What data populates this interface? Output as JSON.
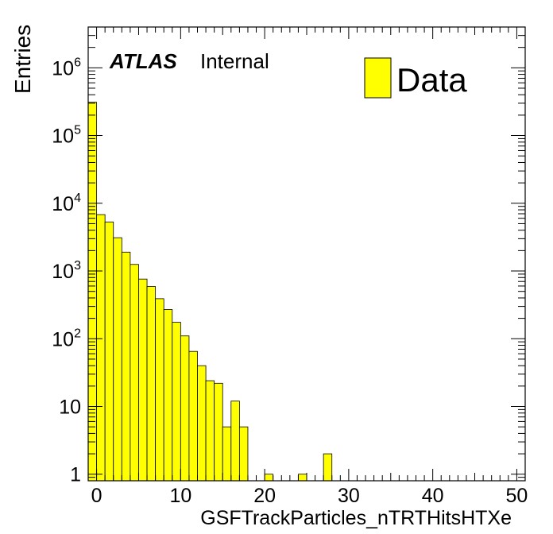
{
  "chart_data": {
    "type": "bar",
    "style": "histogram",
    "xlabel": "GSFTrackParticles_nTRTHitsHTXe",
    "ylabel": "Entries",
    "xlim": [
      -1,
      51
    ],
    "ylim": [
      0.8,
      4000000
    ],
    "yscale": "log",
    "bin_width": 1,
    "x_ticks": [
      "0",
      "10",
      "20",
      "30",
      "40",
      "50"
    ],
    "y_ticks": [
      {
        "value": 1,
        "label": "1",
        "exp": ""
      },
      {
        "value": 10,
        "label": "10",
        "exp": ""
      },
      {
        "value": 100,
        "label": "10",
        "exp": "2"
      },
      {
        "value": 1000,
        "label": "10",
        "exp": "3"
      },
      {
        "value": 10000,
        "label": "10",
        "exp": "4"
      },
      {
        "value": 100000,
        "label": "10",
        "exp": "5"
      },
      {
        "value": 1000000,
        "label": "10",
        "exp": "6"
      }
    ],
    "series": [
      {
        "name": "Data",
        "color": "#ffff00",
        "bins": [
          {
            "x": -1,
            "value": 310000
          },
          {
            "x": 0,
            "value": 6800
          },
          {
            "x": 1,
            "value": 5300
          },
          {
            "x": 2,
            "value": 3100
          },
          {
            "x": 3,
            "value": 1900
          },
          {
            "x": 4,
            "value": 1250
          },
          {
            "x": 5,
            "value": 760
          },
          {
            "x": 6,
            "value": 590
          },
          {
            "x": 7,
            "value": 390
          },
          {
            "x": 8,
            "value": 270
          },
          {
            "x": 9,
            "value": 175
          },
          {
            "x": 10,
            "value": 110
          },
          {
            "x": 11,
            "value": 65
          },
          {
            "x": 12,
            "value": 40
          },
          {
            "x": 13,
            "value": 24
          },
          {
            "x": 14,
            "value": 22
          },
          {
            "x": 15,
            "value": 5
          },
          {
            "x": 16,
            "value": 12
          },
          {
            "x": 17,
            "value": 5
          },
          {
            "x": 20,
            "value": 1
          },
          {
            "x": 24,
            "value": 1
          },
          {
            "x": 27,
            "value": 2
          }
        ]
      }
    ],
    "legend": {
      "position": "top-right",
      "label": "Data"
    },
    "annotation": {
      "bold": "ATLAS",
      "text": "Internal"
    },
    "grid": false
  }
}
